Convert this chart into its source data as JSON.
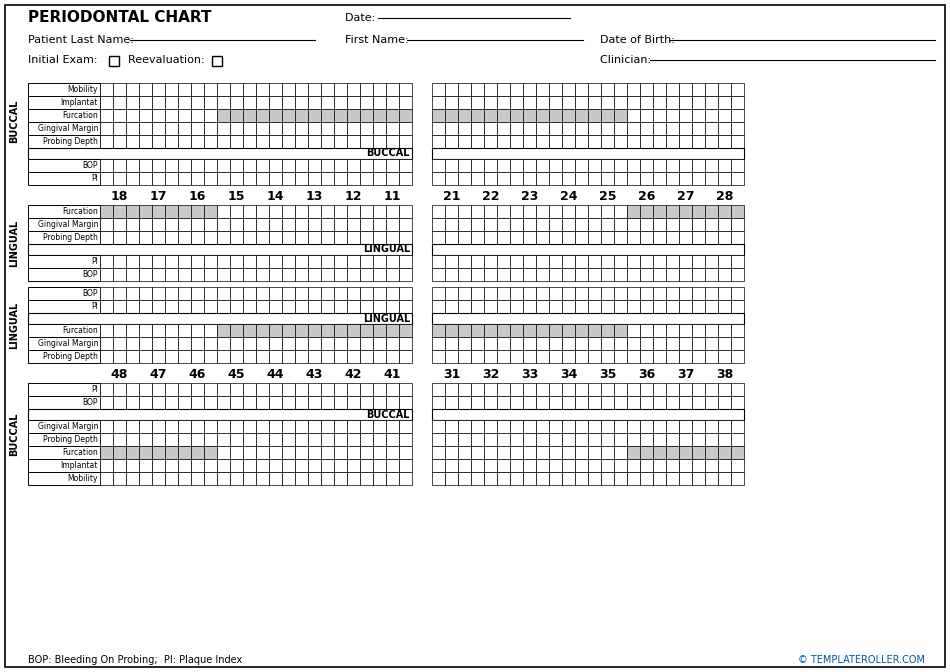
{
  "title": "PERIODONTAL CHART",
  "bg_color": "#ffffff",
  "gray_color": "#c8c8c8",
  "upper_left_teeth": [
    "18",
    "17",
    "16",
    "15",
    "14",
    "13",
    "12",
    "11"
  ],
  "upper_right_teeth": [
    "21",
    "22",
    "23",
    "24",
    "25",
    "26",
    "27",
    "28"
  ],
  "lower_left_teeth": [
    "48",
    "47",
    "46",
    "45",
    "44",
    "43",
    "42",
    "41"
  ],
  "lower_right_teeth": [
    "31",
    "32",
    "33",
    "34",
    "35",
    "36",
    "37",
    "38"
  ],
  "buccal_rows_upper": [
    "Mobility",
    "Implantat",
    "Furcation",
    "Gingival Margin",
    "Probing Depth"
  ],
  "buccal_rows_upper_bottom": [
    "BOP",
    "PI"
  ],
  "lingual_rows_upper_top": [
    "Furcation",
    "Gingival Margin",
    "Probing Depth"
  ],
  "lingual_rows_upper_bottom": [
    "PI",
    "BOP"
  ],
  "lingual_rows_lower_top": [
    "BOP",
    "PI"
  ],
  "lingual_rows_lower_mid": [
    "Furcation",
    "Gingival Margin",
    "Probing Depth"
  ],
  "buccal_rows_lower_top": [
    "PI",
    "BOP"
  ],
  "buccal_rows_lower_bottom": [
    "Gingival Margin",
    "Probing Depth",
    "Furcation",
    "Implantat",
    "Mobility"
  ],
  "footer_left": "BOP: Bleeding On Probing;  PI: Plaque Index",
  "footer_right": "© TEMPLATEROLLER.COM"
}
